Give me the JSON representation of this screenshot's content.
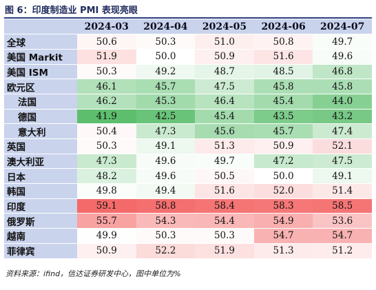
{
  "figure": {
    "title": "图 6：印度制造业 PMI 表现亮眼",
    "source": "资料来源：ifind，信达证券研发中心，图中单位为%"
  },
  "chart_data": {
    "type": "heatmap",
    "columns": [
      "2024-03",
      "2024-04",
      "2024-05",
      "2024-06",
      "2024-07"
    ],
    "rows": [
      {
        "label": "全球",
        "indent": false,
        "values": [
          50.6,
          50.3,
          51.0,
          50.8,
          49.7
        ]
      },
      {
        "label": "美国 Markit",
        "indent": false,
        "values": [
          51.9,
          50.0,
          50.9,
          51.6,
          49.6
        ]
      },
      {
        "label": "美国 ISM",
        "indent": false,
        "values": [
          50.3,
          49.2,
          48.7,
          48.5,
          46.8
        ]
      },
      {
        "label": "欧元区",
        "indent": false,
        "values": [
          46.1,
          45.7,
          47.5,
          45.8,
          45.8
        ]
      },
      {
        "label": "法国",
        "indent": true,
        "values": [
          46.2,
          45.3,
          46.4,
          45.4,
          44.0
        ]
      },
      {
        "label": "德国",
        "indent": true,
        "values": [
          41.9,
          42.5,
          45.4,
          43.5,
          43.2
        ]
      },
      {
        "label": "意大利",
        "indent": true,
        "values": [
          50.4,
          47.3,
          45.6,
          45.7,
          47.4
        ]
      },
      {
        "label": "英国",
        "indent": false,
        "values": [
          50.3,
          49.1,
          51.3,
          50.9,
          52.1
        ]
      },
      {
        "label": "澳大利亚",
        "indent": false,
        "values": [
          47.3,
          49.6,
          49.7,
          47.2,
          47.5
        ]
      },
      {
        "label": "日本",
        "indent": false,
        "values": [
          48.2,
          49.6,
          50.5,
          50.0,
          49.1
        ]
      },
      {
        "label": "韩国",
        "indent": false,
        "values": [
          49.8,
          49.4,
          51.6,
          52.0,
          51.4
        ]
      },
      {
        "label": "印度",
        "indent": false,
        "values": [
          59.1,
          58.8,
          58.4,
          58.3,
          58.5
        ]
      },
      {
        "label": "俄罗斯",
        "indent": false,
        "values": [
          55.7,
          54.3,
          54.4,
          54.9,
          53.6
        ]
      },
      {
        "label": "越南",
        "indent": false,
        "values": [
          49.9,
          50.3,
          50.3,
          54.7,
          54.7
        ]
      },
      {
        "label": "菲律宾",
        "indent": false,
        "values": [
          50.9,
          52.2,
          51.9,
          51.3,
          51.2
        ]
      }
    ],
    "value_format": "0.0",
    "color_scale": {
      "low": "#5dbf6e",
      "mid": "#ffffff",
      "high": "#f46a6a"
    }
  }
}
